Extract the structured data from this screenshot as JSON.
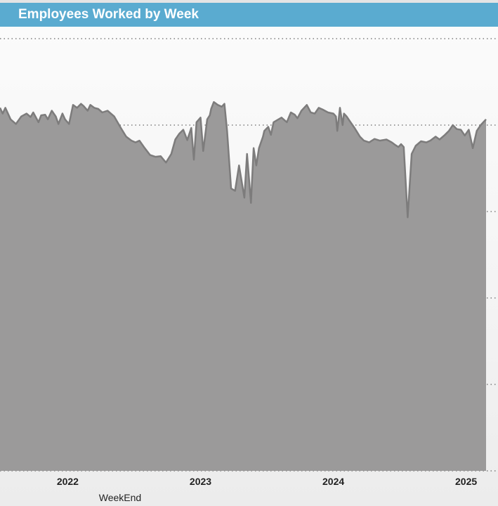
{
  "header": {
    "title": "Employees Worked by Week"
  },
  "chart_data": {
    "type": "area",
    "title": "Employees Worked by Week",
    "xlabel": "WeekEnd",
    "ylabel": "",
    "x_tick_labels": [
      "2022",
      "2023",
      "2024",
      "2025"
    ],
    "x_tick_values": [
      2022.0,
      2023.0,
      2024.0,
      2025.0
    ],
    "xlim": [
      2021.49,
      2025.15
    ],
    "y_tick_labels": [],
    "grid": true,
    "legend": "none",
    "colors": {
      "area_fill": "#9b9a9a",
      "line": "#7d7c7c",
      "title_bar": "#5aabd0",
      "grid": "#666666"
    },
    "series": [
      {
        "x": [
          2021.49,
          2021.51,
          2021.53,
          2021.57,
          2021.61,
          2021.65,
          2021.69,
          2021.72,
          2021.74,
          2021.78,
          2021.8,
          2021.83,
          2021.85,
          2021.88,
          2021.91,
          2021.93,
          2021.96,
          2021.98,
          2022.01,
          2022.04,
          2022.07,
          2022.1,
          2022.12,
          2022.15,
          2022.17,
          2022.2,
          2022.23,
          2022.26,
          2022.3,
          2022.35,
          2022.4,
          2022.44,
          2022.48,
          2022.51,
          2022.54,
          2022.58,
          2022.62,
          2022.66,
          2022.7,
          2022.74,
          2022.78,
          2022.81,
          2022.84,
          2022.87,
          2022.9,
          2022.93,
          2022.95,
          2022.97,
          2023.0,
          2023.02,
          2023.05,
          2023.07,
          2023.08,
          2023.1,
          2023.13,
          2023.16,
          2023.18,
          2023.2,
          2023.23,
          2023.26,
          2023.29,
          2023.33,
          2023.35,
          2023.38,
          2023.4,
          2023.42,
          2023.44,
          2023.47,
          2023.48,
          2023.51,
          2023.53,
          2023.55,
          2023.58,
          2023.61,
          2023.65,
          2023.68,
          2023.71,
          2023.73,
          2023.76,
          2023.8,
          2023.83,
          2023.86,
          2023.89,
          2023.92,
          2023.96,
          2024.0,
          2024.02,
          2024.03,
          2024.05,
          2024.07,
          2024.08,
          2024.1,
          2024.13,
          2024.16,
          2024.2,
          2024.23,
          2024.27,
          2024.31,
          2024.35,
          2024.4,
          2024.44,
          2024.47,
          2024.49,
          2024.51,
          2024.53,
          2024.56,
          2024.59,
          2024.62,
          2024.66,
          2024.7,
          2024.73,
          2024.77,
          2024.8,
          2024.84,
          2024.87,
          2024.9,
          2024.93,
          2024.96,
          2024.99,
          2025.02,
          2025.05,
          2025.08,
          2025.11,
          2025.13,
          2025.15
        ],
        "y": [
          1200,
          1190,
          1200,
          1180,
          1172,
          1185,
          1190,
          1184,
          1192,
          1175,
          1187,
          1188,
          1180,
          1195,
          1185,
          1172,
          1190,
          1180,
          1172,
          1205,
          1200,
          1207,
          1203,
          1195,
          1205,
          1200,
          1198,
          1192,
          1195,
          1185,
          1165,
          1150,
          1143,
          1140,
          1143,
          1130,
          1118,
          1115,
          1116,
          1105,
          1120,
          1145,
          1155,
          1162,
          1144,
          1165,
          1110,
          1175,
          1183,
          1125,
          1180,
          1187,
          1198,
          1210,
          1205,
          1202,
          1207,
          1160,
          1060,
          1056,
          1100,
          1044,
          1120,
          1035,
          1130,
          1100,
          1130,
          1150,
          1160,
          1167,
          1153,
          1175,
          1179,
          1183,
          1175,
          1192,
          1188,
          1182,
          1195,
          1205,
          1192,
          1190,
          1200,
          1197,
          1192,
          1190,
          1185,
          1160,
          1200,
          1170,
          1190,
          1185,
          1175,
          1165,
          1150,
          1143,
          1140,
          1146,
          1143,
          1145,
          1140,
          1135,
          1132,
          1137,
          1132,
          1010,
          1120,
          1134,
          1142,
          1140,
          1143,
          1150,
          1145,
          1153,
          1160,
          1170,
          1163,
          1162,
          1152,
          1162,
          1130,
          1160,
          1170,
          1175,
          1180
        ]
      }
    ]
  }
}
